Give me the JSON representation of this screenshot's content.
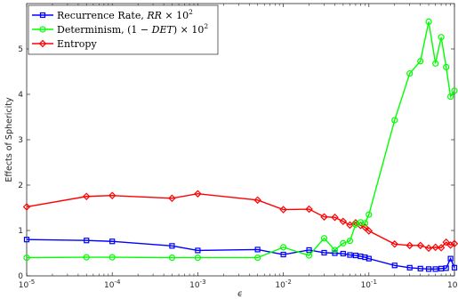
{
  "chart_data": {
    "type": "line",
    "xscale": "log",
    "xlim": [
      1e-05,
      1
    ],
    "ylim": [
      0,
      6
    ],
    "xlabel": "ϵ",
    "ylabel": "Effects of Sphericity",
    "grid": false,
    "legend_position": "top-left",
    "x_tick_labels": [
      {
        "base": "10",
        "exp": "-5",
        "value": 1e-05
      },
      {
        "base": "10",
        "exp": "-4",
        "value": 0.0001
      },
      {
        "base": "10",
        "exp": "-3",
        "value": 0.001
      },
      {
        "base": "10",
        "exp": "-2",
        "value": 0.01
      },
      {
        "base": "10",
        "exp": "-1",
        "value": 0.1
      },
      {
        "base": "10",
        "exp": "0",
        "value": 1
      }
    ],
    "y_ticks": [
      0,
      1,
      2,
      3,
      4,
      5
    ],
    "y_tick_labels": [
      "0",
      "1",
      "2",
      "3",
      "4",
      "5"
    ],
    "series": [
      {
        "name": "Recurrence Rate, RR × 10²",
        "legend_plain": "Recurrence Rate, ",
        "legend_math": "RR",
        "legend_tail": " × 10",
        "legend_sup": "2",
        "color": "#0000ff",
        "marker": "square",
        "x": [
          1e-05,
          5e-05,
          0.0001,
          0.0005,
          0.001,
          0.005,
          0.01,
          0.02,
          0.03,
          0.04,
          0.05,
          0.06,
          0.07,
          0.08,
          0.09,
          0.1,
          0.2,
          0.3,
          0.4,
          0.5,
          0.6,
          0.7,
          0.8,
          0.9,
          1.0
        ],
        "values": [
          0.8,
          0.78,
          0.76,
          0.66,
          0.56,
          0.58,
          0.47,
          0.57,
          0.51,
          0.5,
          0.49,
          0.46,
          0.45,
          0.43,
          0.41,
          0.38,
          0.23,
          0.18,
          0.16,
          0.15,
          0.15,
          0.16,
          0.17,
          0.38,
          0.18
        ]
      },
      {
        "name": "Determinism, (1 − DET) × 10²",
        "legend_plain": "Determinism, (1 − ",
        "legend_math": "DET",
        "legend_tail": ") × 10",
        "legend_sup": "2",
        "color": "#00ff00",
        "marker": "circle",
        "x": [
          1e-05,
          5e-05,
          0.0001,
          0.0005,
          0.001,
          0.005,
          0.01,
          0.02,
          0.03,
          0.04,
          0.05,
          0.06,
          0.07,
          0.08,
          0.09,
          0.1,
          0.2,
          0.3,
          0.4,
          0.5,
          0.6,
          0.7,
          0.8,
          0.9,
          1.0
        ],
        "values": [
          0.4,
          0.41,
          0.41,
          0.4,
          0.4,
          0.4,
          0.63,
          0.45,
          0.83,
          0.57,
          0.72,
          0.77,
          1.13,
          1.18,
          1.16,
          1.35,
          3.43,
          4.46,
          4.73,
          5.6,
          4.68,
          5.26,
          4.6,
          3.95,
          4.08
        ]
      },
      {
        "name": "Entropy",
        "legend_plain": "Entropy",
        "legend_math": "",
        "legend_tail": "",
        "legend_sup": "",
        "color": "#ff0000",
        "marker": "diamond",
        "x": [
          1e-05,
          5e-05,
          0.0001,
          0.0005,
          0.001,
          0.005,
          0.01,
          0.02,
          0.03,
          0.04,
          0.05,
          0.06,
          0.07,
          0.08,
          0.09,
          0.1,
          0.2,
          0.3,
          0.4,
          0.5,
          0.6,
          0.7,
          0.8,
          0.9,
          1.0
        ],
        "values": [
          1.52,
          1.75,
          1.77,
          1.71,
          1.81,
          1.67,
          1.46,
          1.47,
          1.3,
          1.29,
          1.2,
          1.12,
          1.17,
          1.11,
          1.07,
          0.99,
          0.7,
          0.67,
          0.67,
          0.61,
          0.63,
          0.62,
          0.74,
          0.68,
          0.71
        ]
      }
    ]
  }
}
